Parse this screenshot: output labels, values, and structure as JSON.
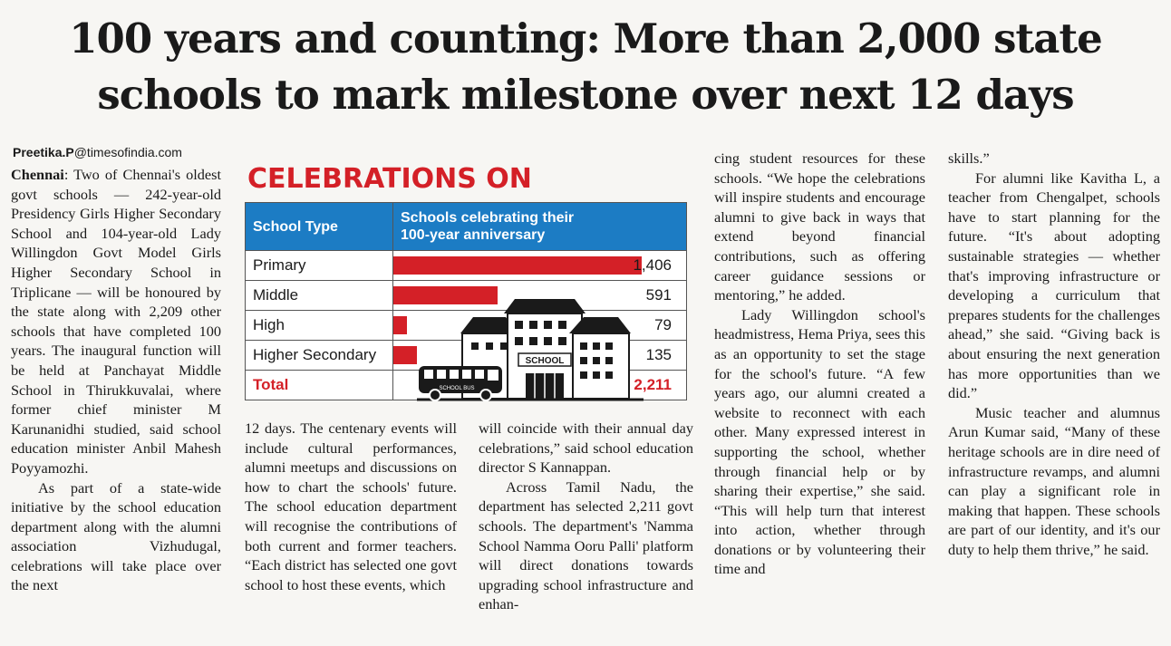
{
  "headline": {
    "line1": "100 years and counting: More than 2,000 state",
    "line2": "schools to mark milestone over next 12 days"
  },
  "byline": {
    "name": "Preetika.P",
    "email": "@timesofindia.com"
  },
  "infographic": {
    "title": "CELEBRATIONS ON",
    "col1_header": "School Type",
    "col2_header": "Schools celebrating their 100-year anniversary",
    "school_sign": "SCHOOL",
    "bus_sign": "SCHOOL BUS",
    "total_label": "Total",
    "total_value": "2,211"
  },
  "chart_data": {
    "type": "bar",
    "categories": [
      "Primary",
      "Middle",
      "High",
      "Higher Secondary"
    ],
    "values": [
      1406,
      591,
      79,
      135
    ],
    "labels": [
      "1,406",
      "591",
      "79",
      "135"
    ],
    "title": "CELEBRATIONS ON",
    "xlabel": "School Type",
    "ylabel": "Schools celebrating their 100-year anniversary"
  },
  "article": {
    "dateline": "Chennai",
    "col1_p1_rest": ": Two of Chennai's oldest govt schools — 242-year-old Presidency Girls Higher Secondary School and 104-year-old Lady Willingdon Govt Model Girls Higher Secondary School in Triplicane — will be honoured by the state along with 2,209 other schools that have completed 100 years. The inaugural function will be held at Panchayat Middle School in Thirukkuvalai, where former chief minister M Karunanidhi studied, said school education minister Anbil Mahesh Poyyamozhi.",
    "col1_p2": "As part of a state-wide initiative by the school education department along with the alumni association Vizhudugal, celebrations will take place over the next",
    "col2": "12 days. The centenary events will include cultural performances, alumni meetups and discussions on how to chart the schools' future. The school education department will recognise the contributions of both current and former teachers. “Each district has selected one govt school to host these events, which",
    "col3_p1": "will coincide with their annual day celebrations,” said school education director S Kannappan.",
    "col3_p2": "Across Tamil Nadu, the department has selected 2,211 govt schools. The department's 'Namma School Namma Ooru Palli' platform will direct donations towards upgrading school infrastructure and enhan-",
    "col4_p1": "cing student resources for these schools. “We hope the celebrations will inspire students and encourage alumni to give back in ways that extend beyond financial contributions, such as offering career guidance sessions or mentoring,” he added.",
    "col4_p2": "Lady Willingdon school's headmistress, Hema Priya, sees this as an opportunity to set the stage for the school's future. “A few years ago, our alumni created a website to reconnect with each other. Many expressed interest in supporting the school, whether through financial help or by sharing their expertise,” she said. “This will help turn that interest into action, whether through donations or by volunteering their time and",
    "col5_p1": "skills.”",
    "col5_p2": "For alumni like Kavitha L, a teacher from Chengalpet, schools have to start planning for the future. “It's about adopting sustainable strategies — whether that's improving infrastructure or developing a curriculum that prepares students for the challenges ahead,” she said. “Giving back is about ensuring the next generation has more opportunities than we did.”",
    "col5_p3": "Music teacher and alumnus Arun Kumar said, “Many of these heritage schools are in dire need of infrastructure revamps, and alumni can play a significant role in making that happen. These schools are part of our identity, and it's our duty to help them thrive,” he said."
  }
}
